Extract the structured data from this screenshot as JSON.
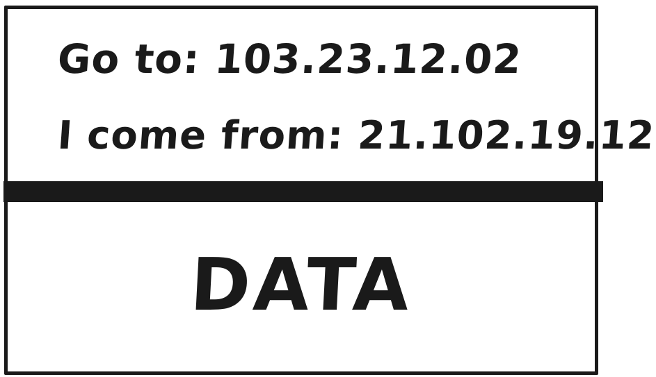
{
  "header": {
    "destination_line": "Go to: 103.23.12.02",
    "source_line": "I come from: 21.102.19.12"
  },
  "body": {
    "payload_label": "DATA"
  },
  "colors": {
    "ink": "#1a1a1a",
    "background": "#ffffff"
  }
}
